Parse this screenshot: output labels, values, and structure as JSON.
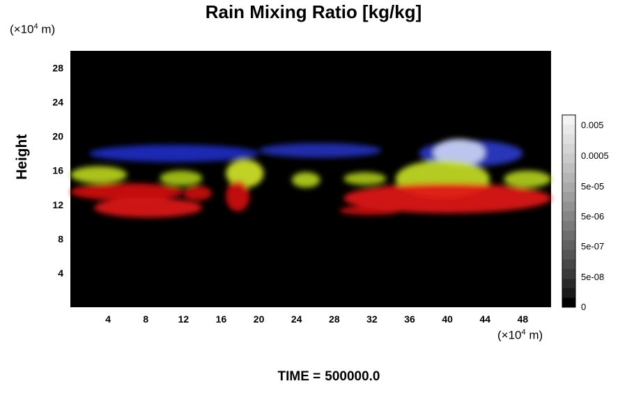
{
  "chart_data": {
    "type": "heatmap",
    "title": "Rain Mixing Ratio [kg/kg]",
    "ylabel": "Height",
    "xlabel": "",
    "x_unit": {
      "prefix": "(×10",
      "exp": "4",
      "suffix": " m)"
    },
    "y_unit": {
      "prefix": "(×10",
      "exp": "4",
      "suffix": " m)"
    },
    "xlim": [
      0,
      51
    ],
    "ylim": [
      0,
      30
    ],
    "x_ticks": [
      4,
      8,
      12,
      16,
      20,
      24,
      28,
      32,
      36,
      40,
      44,
      48
    ],
    "y_ticks": [
      4,
      8,
      12,
      16,
      20,
      24,
      28
    ],
    "colorbar": {
      "tick_labels": [
        "0.005",
        "0.0005",
        "5e-05",
        "5e-06",
        "5e-07",
        "5e-08",
        "0"
      ],
      "levels": 20,
      "colors": [
        "#000000",
        "#1a1a1a",
        "#2a2a2a",
        "#3a3a3a",
        "#474747",
        "#555555",
        "#626262",
        "#6e6e6e",
        "#7a7a7a",
        "#868686",
        "#929292",
        "#9e9e9e",
        "#aaaaaa",
        "#b5b5b5",
        "#c0c0c0",
        "#cbcbcb",
        "#d5d5d5",
        "#dfdfdf",
        "#e9e9e9",
        "#f3f3f3"
      ]
    },
    "background_color": "#000000",
    "layer_colors": {
      "low": "#e01010",
      "mid": "#b8d820",
      "high": "#1e2ad0",
      "peak": "#c8d0f0"
    },
    "features": [
      {
        "layer": "high",
        "x": [
          2,
          20
        ],
        "y": [
          17,
          19
        ],
        "color": "#1f2bc2"
      },
      {
        "layer": "high",
        "x": [
          20,
          33
        ],
        "y": [
          17.5,
          19.2
        ],
        "color": "#2430b8"
      },
      {
        "layer": "high",
        "x": [
          37,
          48
        ],
        "y": [
          16.5,
          19.5
        ],
        "color": "#2b39c8"
      },
      {
        "layer": "peak",
        "x": [
          38.5,
          44
        ],
        "y": [
          16.5,
          19.7
        ],
        "color": "#c9d1f2"
      },
      {
        "layer": "mid",
        "x": [
          0,
          6
        ],
        "y": [
          14.5,
          16.5
        ],
        "color": "#b9d21c"
      },
      {
        "layer": "mid",
        "x": [
          9.5,
          14
        ],
        "y": [
          14.2,
          16
        ],
        "color": "#a7c518"
      },
      {
        "layer": "mid",
        "x": [
          16.5,
          20.5
        ],
        "y": [
          14,
          17.3
        ],
        "color": "#d0e427"
      },
      {
        "layer": "mid",
        "x": [
          23.5,
          26.5
        ],
        "y": [
          14,
          15.8
        ],
        "color": "#b3d01b"
      },
      {
        "layer": "mid",
        "x": [
          29,
          33.5
        ],
        "y": [
          14.3,
          15.8
        ],
        "color": "#a7c418"
      },
      {
        "layer": "mid",
        "x": [
          34.5,
          44.5
        ],
        "y": [
          12.8,
          17.2
        ],
        "color": "#c3dc22"
      },
      {
        "layer": "mid",
        "x": [
          46,
          51
        ],
        "y": [
          14,
          16
        ],
        "color": "#b1ce1b"
      },
      {
        "layer": "low",
        "x": [
          0,
          12
        ],
        "y": [
          12.5,
          14.5
        ],
        "color": "#d41212"
      },
      {
        "layer": "low",
        "x": [
          12,
          15
        ],
        "y": [
          12.5,
          14.2
        ],
        "color": "#cc1010"
      },
      {
        "layer": "low",
        "x": [
          16.5,
          19
        ],
        "y": [
          11.2,
          14.8
        ],
        "color": "#d11111"
      },
      {
        "layer": "low",
        "x": [
          2.5,
          14
        ],
        "y": [
          10.5,
          12.8
        ],
        "color": "#e01515"
      },
      {
        "layer": "low",
        "x": [
          29,
          51
        ],
        "y": [
          11,
          14.5
        ],
        "color": "#e21414"
      },
      {
        "layer": "low",
        "x": [
          28.5,
          35
        ],
        "y": [
          10.8,
          11.8
        ],
        "color": "#cf1212"
      }
    ]
  },
  "time": {
    "label": "TIME =",
    "value": "500000.0"
  }
}
